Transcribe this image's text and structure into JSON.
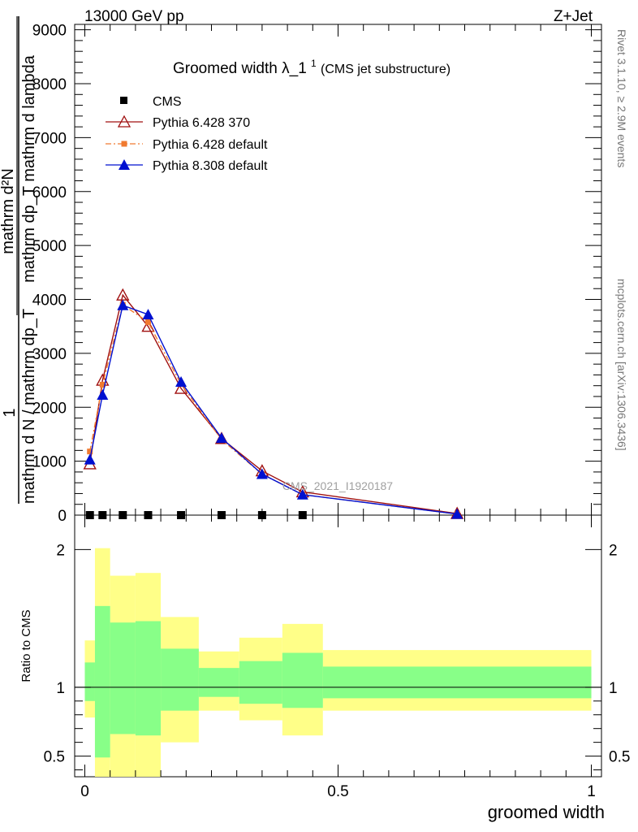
{
  "header": {
    "left": "13000 GeV pp",
    "right": "Z+Jet"
  },
  "side_labels": {
    "right_top": "Rivet 3.1.10, ≥ 2.9M events",
    "right_bottom": "mcplots.cern.ch [arXiv:1306.3436]"
  },
  "watermark": "CMS_2021_I1920187",
  "colors": {
    "cms": "#000000",
    "py6_370": "#a01010",
    "py6_default": "#f07a30",
    "py8_default": "#0010d0",
    "band_outer": "#ffff88",
    "band_inner": "#88ff88"
  },
  "chart_data": [
    {
      "type": "line",
      "title": "Groomed width",
      "title_symbol": "λ_1",
      "title_superscript": "1",
      "title_suffix": "(CMS jet substructure)",
      "ylabel_numerator_top": "mathrm d²N",
      "ylabel_numerator_bottom": "mathrm dp_T mathrm d lambda",
      "ylabel_prefix": "1",
      "ylabel_denominator": "mathrm d N / mathrm dp_T",
      "ylabel_subscript": "T",
      "xlim": [
        -0.02,
        1.02
      ],
      "ylim": [
        0,
        9100
      ],
      "y_ticks": [
        0,
        1000,
        2000,
        3000,
        4000,
        5000,
        6000,
        7000,
        8000,
        9000
      ],
      "y_tick_labels": [
        "0",
        "1000",
        "2000",
        "3000",
        "4000",
        "5000",
        "6000",
        "7000",
        "8000",
        "9000"
      ],
      "legend_position": "top-left",
      "series": [
        {
          "name": "CMS",
          "marker": "square",
          "x": [
            0.01,
            0.035,
            0.075,
            0.125,
            0.19,
            0.27,
            0.35,
            0.43
          ],
          "y": [
            0,
            0,
            0,
            0,
            0,
            0,
            0,
            0
          ]
        },
        {
          "name": "Pythia 6.428 370",
          "marker": "open-triangle",
          "x": [
            0.01,
            0.035,
            0.075,
            0.125,
            0.19,
            0.27,
            0.35,
            0.43,
            0.735
          ],
          "y": [
            950,
            2500,
            4080,
            3500,
            2350,
            1420,
            820,
            430,
            30
          ]
        },
        {
          "name": "Pythia 6.428 default",
          "marker": "square",
          "dash": "dashdot",
          "x": [
            0.01,
            0.035,
            0.075,
            0.125,
            0.19,
            0.27,
            0.35,
            0.43,
            0.735
          ],
          "y": [
            1180,
            2420,
            3900,
            3580,
            2430,
            1400,
            760,
            380,
            20
          ]
        },
        {
          "name": "Pythia 8.308 default",
          "marker": "filled-triangle",
          "x": [
            0.01,
            0.035,
            0.075,
            0.125,
            0.19,
            0.27,
            0.35,
            0.43,
            0.735
          ],
          "y": [
            1030,
            2230,
            3890,
            3720,
            2470,
            1430,
            760,
            380,
            20
          ]
        }
      ]
    },
    {
      "type": "area",
      "xlabel": "groomed width",
      "ylabel": "Ratio to CMS",
      "xlim": [
        -0.02,
        1.02
      ],
      "ylim": [
        0.35,
        2.25
      ],
      "y_ticks": [
        0.5,
        1,
        2
      ],
      "y_tick_labels": [
        "0.5",
        "1",
        "2"
      ],
      "x_ticks": [
        0,
        0.5,
        1
      ],
      "x_tick_labels": [
        "0",
        "0.5",
        "1"
      ],
      "reference_line": 1,
      "bins": [
        {
          "x0": 0.0,
          "x1": 0.02,
          "outer_lo": 0.78,
          "outer_hi": 1.34,
          "inner_lo": 0.9,
          "inner_hi": 1.18
        },
        {
          "x0": 0.02,
          "x1": 0.05,
          "outer_lo": 0.35,
          "outer_hi": 2.01,
          "inner_lo": 0.49,
          "inner_hi": 1.59
        },
        {
          "x0": 0.05,
          "x1": 0.1,
          "outer_lo": 0.35,
          "outer_hi": 1.81,
          "inner_lo": 0.66,
          "inner_hi": 1.47
        },
        {
          "x0": 0.1,
          "x1": 0.15,
          "outer_lo": 0.35,
          "outer_hi": 1.83,
          "inner_lo": 0.65,
          "inner_hi": 1.48
        },
        {
          "x0": 0.15,
          "x1": 0.225,
          "outer_lo": 0.6,
          "outer_hi": 1.51,
          "inner_lo": 0.83,
          "inner_hi": 1.28
        },
        {
          "x0": 0.225,
          "x1": 0.305,
          "outer_lo": 0.83,
          "outer_hi": 1.26,
          "inner_lo": 0.93,
          "inner_hi": 1.14
        },
        {
          "x0": 0.305,
          "x1": 0.39,
          "outer_lo": 0.76,
          "outer_hi": 1.36,
          "inner_lo": 0.88,
          "inner_hi": 1.19
        },
        {
          "x0": 0.39,
          "x1": 0.47,
          "outer_lo": 0.65,
          "outer_hi": 1.46,
          "inner_lo": 0.85,
          "inner_hi": 1.25
        },
        {
          "x0": 0.47,
          "x1": 1.0,
          "outer_lo": 0.83,
          "outer_hi": 1.27,
          "inner_lo": 0.92,
          "inner_hi": 1.15
        }
      ]
    }
  ]
}
